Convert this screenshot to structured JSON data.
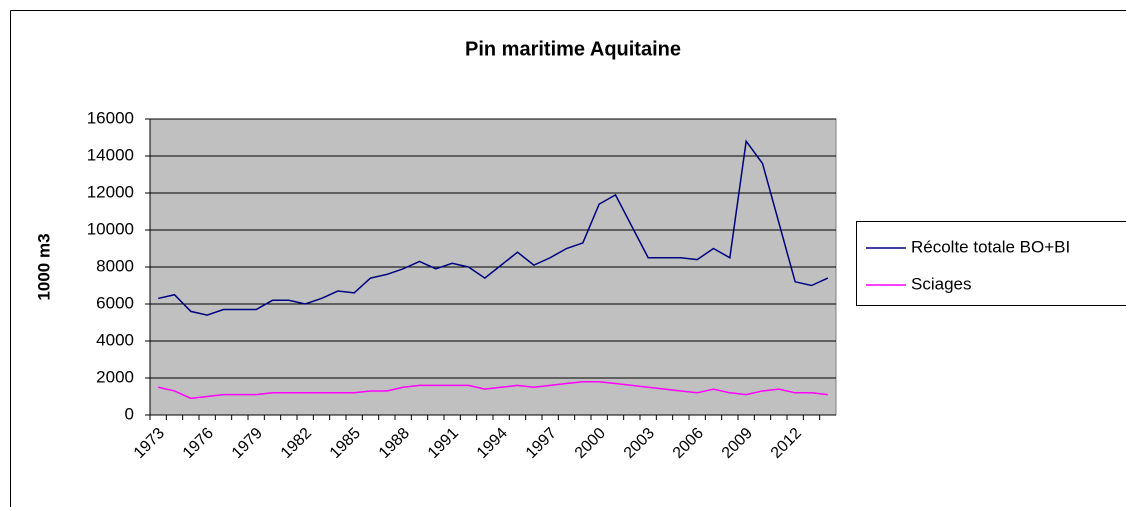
{
  "chart_data": {
    "type": "line",
    "title": "Pin maritime Aquitaine",
    "y_label": "1000 m3",
    "categories": [
      "1973",
      null,
      null,
      "1976",
      null,
      null,
      "1979",
      null,
      null,
      "1982",
      null,
      null,
      "1985",
      null,
      null,
      "1988",
      null,
      null,
      "1991",
      null,
      null,
      "1994",
      null,
      null,
      "1997",
      null,
      null,
      "2000",
      null,
      null,
      "2003",
      null,
      null,
      "2006",
      null,
      null,
      "2009",
      null,
      null,
      "2012",
      null,
      null
    ],
    "series": [
      {
        "name": "Récolte totale BO+BI",
        "color": "#000080",
        "values": [
          6300,
          6500,
          5600,
          5400,
          5700,
          5700,
          5700,
          6200,
          6200,
          6000,
          6300,
          6700,
          6600,
          7400,
          7600,
          7900,
          8300,
          7900,
          8200,
          8000,
          7400,
          8100,
          8800,
          8100,
          8500,
          9000,
          9300,
          11400,
          11900,
          10200,
          8500,
          8500,
          8500,
          8400,
          9000,
          8500,
          14800,
          13600,
          10400,
          7200,
          7000,
          7400
        ]
      },
      {
        "name": "Sciages",
        "color": "#ff00ff",
        "values": [
          1500,
          1300,
          900,
          1000,
          1100,
          1100,
          1100,
          1200,
          1200,
          1200,
          1200,
          1200,
          1200,
          1300,
          1300,
          1500,
          1600,
          1600,
          1600,
          1600,
          1400,
          1500,
          1600,
          1500,
          1600,
          1700,
          1800,
          1800,
          1700,
          1600,
          1500,
          1400,
          1300,
          1200,
          1400,
          1200,
          1100,
          1300,
          1400,
          1200,
          1200,
          1100
        ]
      }
    ],
    "ylim": [
      0,
      16000
    ],
    "yticks": [
      0,
      2000,
      4000,
      6000,
      8000,
      10000,
      12000,
      14000,
      16000
    ],
    "grid": true,
    "plot_background": "#c0c0c0",
    "legend": "right"
  }
}
